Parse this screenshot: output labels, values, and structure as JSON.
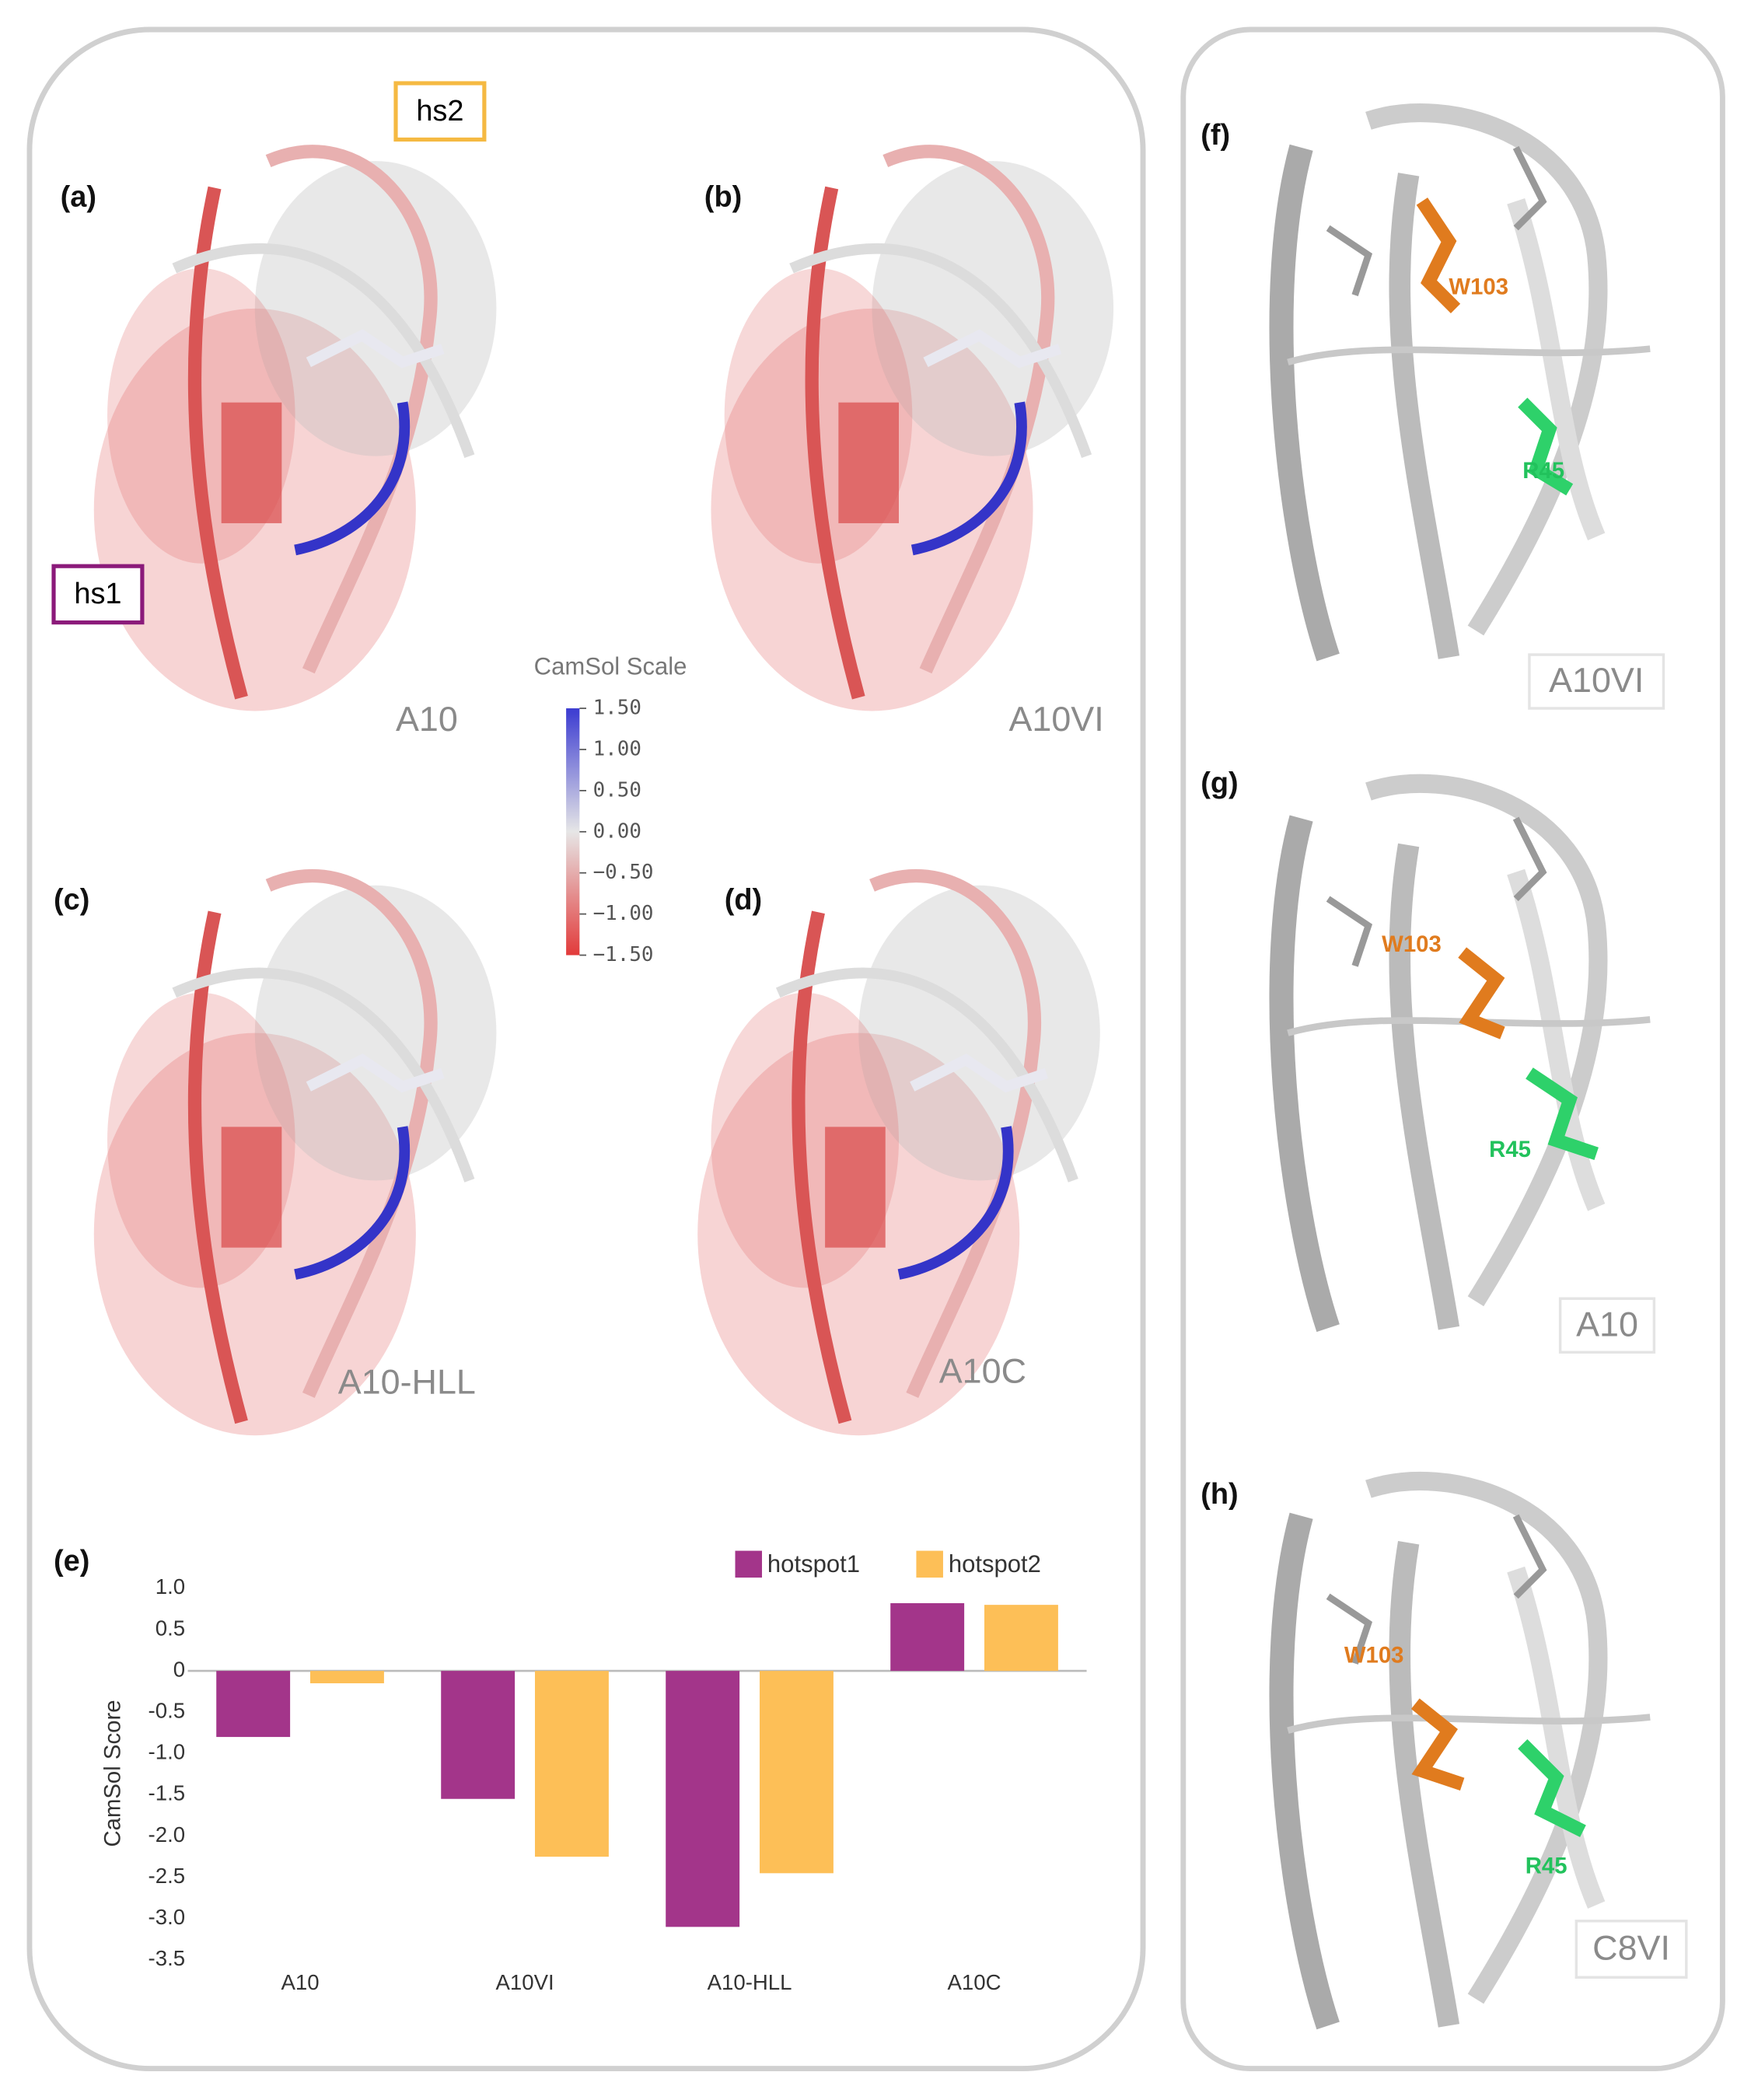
{
  "panels": {
    "a": {
      "label": "(a)",
      "name": "A10",
      "hotspot1": "hs1",
      "hotspot2": "hs2"
    },
    "b": {
      "label": "(b)",
      "name": "A10VI"
    },
    "c": {
      "label": "(c)",
      "name": "A10-HLL"
    },
    "d": {
      "label": "(d)",
      "name": "A10C"
    },
    "e": {
      "label": "(e)"
    },
    "f": {
      "label": "(f)",
      "name": "A10VI",
      "residue1": "W103",
      "residue2": "R45"
    },
    "g": {
      "label": "(g)",
      "name": "A10",
      "residue1": "W103",
      "residue2": "R45"
    },
    "h": {
      "label": "(h)",
      "name": "C8VI",
      "residue1": "W103",
      "residue2": "R45"
    }
  },
  "colorbar": {
    "title": "CamSol Scale",
    "lim": [
      -1.5,
      1.5
    ],
    "ticks": [
      {
        "value": 1.5,
        "label": "1.50"
      },
      {
        "value": 1,
        "label": "1.00"
      },
      {
        "value": 0.5,
        "label": "0.50"
      },
      {
        "value": 0,
        "label": "0.00"
      },
      {
        "value": -0.5,
        "label": "−0.50"
      },
      {
        "value": -1,
        "label": "−1.00"
      },
      {
        "value": -1.5,
        "label": "−1.50"
      }
    ]
  },
  "chart_data": {
    "type": "bar",
    "ylabel": "CamSol Score",
    "categories": [
      "A10",
      "A10VI",
      "A10-HLL",
      "A10C"
    ],
    "series": [
      {
        "name": "hotspot1",
        "color": "#a3358a",
        "values": [
          -0.8,
          -1.55,
          -3.1,
          0.82
        ]
      },
      {
        "name": "hotspot2",
        "color": "#fdbf57",
        "values": [
          -0.15,
          -2.25,
          -2.45,
          0.8
        ]
      }
    ],
    "ylim": [
      -3.5,
      1.0
    ],
    "yticks": [
      {
        "value": 1,
        "label": "1.0"
      },
      0.5,
      0,
      -0.5,
      {
        "value": -1,
        "label": "-1.0"
      },
      -1.5,
      {
        "value": -2,
        "label": "-2.0"
      },
      -2.5,
      {
        "value": -3,
        "label": "-3.0"
      },
      -3.5
    ],
    "legend": "top-right"
  }
}
